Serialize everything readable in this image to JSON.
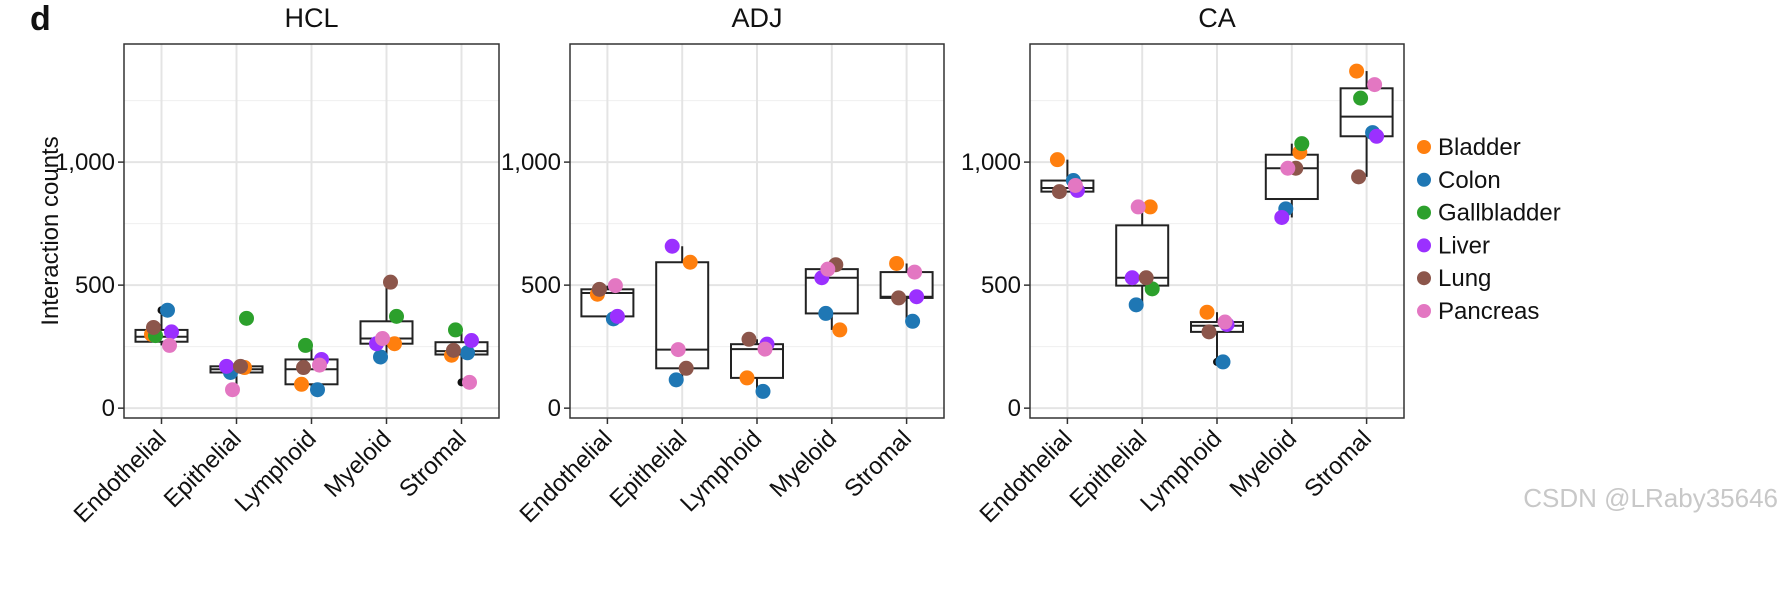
{
  "figure_label": "d",
  "watermark": "CSDN @LRaby35646",
  "legend": [
    {
      "name": "Bladder",
      "color": "#ff7f0e"
    },
    {
      "name": "Colon",
      "color": "#1f77b4"
    },
    {
      "name": "Gallbladder",
      "color": "#2ca02c"
    },
    {
      "name": "Liver",
      "color": "#9b30ff"
    },
    {
      "name": "Lung",
      "color": "#8c564b"
    },
    {
      "name": "Pancreas",
      "color": "#e377c2"
    }
  ],
  "chart_data": [
    {
      "type": "box-with-points",
      "title": "HCL",
      "ylabel": "Interaction counts",
      "xlabel": "",
      "ylim": [
        -40,
        1480
      ],
      "yticks": [
        0,
        500,
        1000
      ],
      "ytick_labels": [
        "0",
        "500",
        "1,000"
      ],
      "grid": true,
      "categories": [
        "Endothelial",
        "Epithelial",
        "Lymphoid",
        "Myeloid",
        "Stromal"
      ],
      "boxes": [
        {
          "category": "Endothelial",
          "q1": 270,
          "median": 290,
          "q3": 318,
          "whisker_low": 255,
          "whisker_high": 398
        },
        {
          "category": "Epithelial",
          "q1": 145,
          "median": 158,
          "q3": 170,
          "whisker_low": 75,
          "whisker_high": 170
        },
        {
          "category": "Lymphoid",
          "q1": 97,
          "median": 158,
          "q3": 198,
          "whisker_low": 75,
          "whisker_high": 255
        },
        {
          "category": "Myeloid",
          "q1": 262,
          "median": 283,
          "q3": 353,
          "whisker_low": 208,
          "whisker_high": 512
        },
        {
          "category": "Stromal",
          "q1": 218,
          "median": 232,
          "q3": 268,
          "whisker_low": 105,
          "whisker_high": 318
        }
      ],
      "series": [
        {
          "name": "Bladder",
          "values": [
            300,
            165,
            97,
            262,
            215
          ]
        },
        {
          "name": "Colon",
          "values": [
            398,
            145,
            75,
            208,
            225
          ]
        },
        {
          "name": "Gallbladder",
          "values": [
            295,
            365,
            255,
            373,
            318
          ]
        },
        {
          "name": "Liver",
          "values": [
            310,
            170,
            198,
            262,
            275
          ]
        },
        {
          "name": "Lung",
          "values": [
            328,
            170,
            165,
            512,
            235
          ]
        },
        {
          "name": "Pancreas",
          "values": [
            255,
            75,
            175,
            283,
            105
          ]
        }
      ],
      "outliers": [
        {
          "category": "Endothelial",
          "value": 398
        },
        {
          "category": "Stromal",
          "value": 105
        }
      ]
    },
    {
      "type": "box-with-points",
      "title": "ADJ",
      "ylabel": "",
      "xlabel": "",
      "ylim": [
        -40,
        1480
      ],
      "yticks": [
        0,
        500,
        1000
      ],
      "ytick_labels": [
        "0",
        "500",
        "1,000"
      ],
      "grid": true,
      "categories": [
        "Endothelial",
        "Epithelial",
        "Lymphoid",
        "Myeloid",
        "Stromal"
      ],
      "boxes": [
        {
          "category": "Endothelial",
          "q1": 373,
          "median": 468,
          "q3": 483,
          "whisker_low": 363,
          "whisker_high": 498
        },
        {
          "category": "Epithelial",
          "q1": 162,
          "median": 238,
          "q3": 593,
          "whisker_low": 115,
          "whisker_high": 658
        },
        {
          "category": "Lymphoid",
          "q1": 123,
          "median": 240,
          "q3": 260,
          "whisker_low": 68,
          "whisker_high": 280
        },
        {
          "category": "Myeloid",
          "q1": 385,
          "median": 530,
          "q3": 565,
          "whisker_low": 318,
          "whisker_high": 583
        },
        {
          "category": "Stromal",
          "q1": 448,
          "median": 453,
          "q3": 553,
          "whisker_low": 353,
          "whisker_high": 588
        }
      ],
      "series": [
        {
          "name": "Bladder",
          "values": [
            463,
            593,
            123,
            318,
            588
          ]
        },
        {
          "name": "Colon",
          "values": [
            363,
            115,
            68,
            385,
            353
          ]
        },
        {
          "name": "Gallbladder",
          "values": [
            null,
            null,
            null,
            null,
            null
          ]
        },
        {
          "name": "Liver",
          "values": [
            373,
            658,
            260,
            530,
            453
          ]
        },
        {
          "name": "Lung",
          "values": [
            483,
            162,
            280,
            583,
            448
          ]
        },
        {
          "name": "Pancreas",
          "values": [
            498,
            238,
            240,
            565,
            553
          ]
        }
      ],
      "outliers": []
    },
    {
      "type": "box-with-points",
      "title": "CA",
      "ylabel": "",
      "xlabel": "",
      "ylim": [
        -40,
        1480
      ],
      "yticks": [
        0,
        500,
        1000
      ],
      "ytick_labels": [
        "0",
        "500",
        "1,000"
      ],
      "grid": true,
      "categories": [
        "Endothelial",
        "Epithelial",
        "Lymphoid",
        "Myeloid",
        "Stromal"
      ],
      "boxes": [
        {
          "category": "Endothelial",
          "q1": 880,
          "median": 895,
          "q3": 925,
          "whisker_low": 880,
          "whisker_high": 1010
        },
        {
          "category": "Epithelial",
          "q1": 498,
          "median": 530,
          "q3": 743,
          "whisker_low": 420,
          "whisker_high": 818
        },
        {
          "category": "Lymphoid",
          "q1": 310,
          "median": 335,
          "q3": 350,
          "whisker_low": 188,
          "whisker_high": 390
        },
        {
          "category": "Myeloid",
          "q1": 850,
          "median": 975,
          "q3": 1030,
          "whisker_low": 775,
          "whisker_high": 1075
        },
        {
          "category": "Stromal",
          "q1": 1105,
          "median": 1185,
          "q3": 1300,
          "whisker_low": 940,
          "whisker_high": 1370
        }
      ],
      "series": [
        {
          "name": "Bladder",
          "values": [
            1010,
            818,
            390,
            1040,
            1370
          ]
        },
        {
          "name": "Colon",
          "values": [
            925,
            420,
            188,
            810,
            1120
          ]
        },
        {
          "name": "Gallbladder",
          "values": [
            null,
            485,
            null,
            1075,
            1260
          ]
        },
        {
          "name": "Liver",
          "values": [
            885,
            530,
            340,
            775,
            1105
          ]
        },
        {
          "name": "Lung",
          "values": [
            880,
            530,
            310,
            975,
            940
          ]
        },
        {
          "name": "Pancreas",
          "values": [
            905,
            818,
            350,
            975,
            1315
          ]
        }
      ],
      "outliers": [
        {
          "category": "Lymphoid",
          "value": 188
        }
      ]
    }
  ]
}
